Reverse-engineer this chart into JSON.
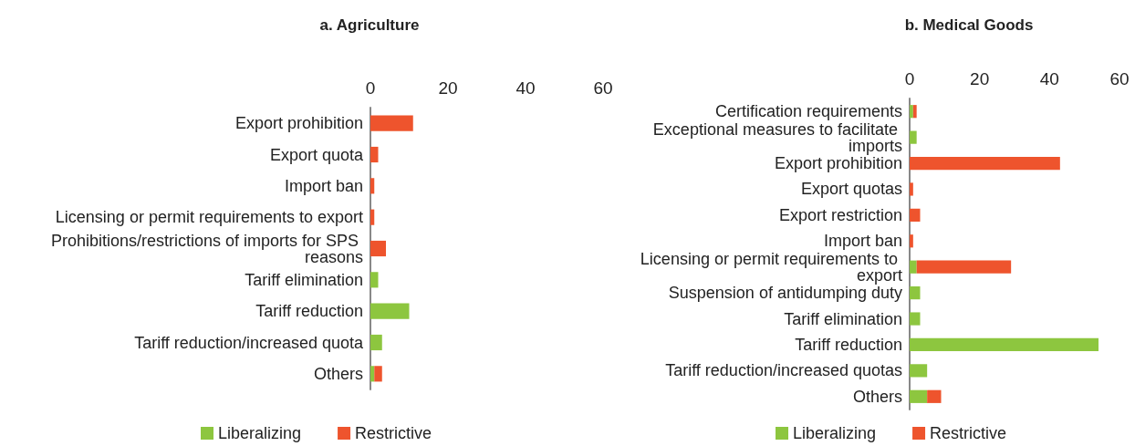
{
  "chart_data": [
    {
      "type": "bar",
      "title": "a. Agriculture",
      "orientation": "horizontal",
      "stacked": true,
      "categories": [
        "Export prohibition",
        "Export quota",
        "Import ban",
        "Licensing or permit requirements to export",
        "Prohibitions/restrictions of imports for SPS reasons",
        "Tariff elimination",
        "Tariff reduction",
        "Tariff reduction/increased quota",
        "Others"
      ],
      "series": [
        {
          "name": "Liberalizing",
          "color": "#8dc63f",
          "values": [
            0,
            0,
            0,
            0,
            0,
            2,
            10,
            3,
            1
          ]
        },
        {
          "name": "Restrictive",
          "color": "#ee542d",
          "values": [
            11,
            2,
            1,
            1,
            4,
            0,
            0,
            0,
            2
          ]
        }
      ],
      "xlim": [
        0,
        60
      ],
      "xticks": [
        0,
        20,
        40,
        60
      ],
      "grid": false,
      "legend": "bottom"
    },
    {
      "type": "bar",
      "title": "b. Medical Goods",
      "orientation": "horizontal",
      "stacked": true,
      "categories": [
        "Certification requirements",
        "Exceptional measures to facilitate imports",
        "Export prohibition",
        "Export quotas",
        "Export restriction",
        "Import ban",
        "Licensing or permit requirements to export",
        "Suspension of antidumping duty",
        "Tariff elimination",
        "Tariff reduction",
        "Tariff reduction/increased quotas",
        "Others"
      ],
      "series": [
        {
          "name": "Liberalizing",
          "color": "#8dc63f",
          "values": [
            1,
            2,
            0,
            0,
            0,
            0,
            2,
            3,
            3,
            54,
            5,
            5
          ]
        },
        {
          "name": "Restrictive",
          "color": "#ee542d",
          "values": [
            1,
            0,
            43,
            1,
            3,
            1,
            27,
            0,
            0,
            0,
            0,
            4
          ]
        }
      ],
      "xlim": [
        0,
        60
      ],
      "xticks": [
        0,
        20,
        40,
        60
      ],
      "grid": false,
      "legend": "bottom"
    }
  ]
}
